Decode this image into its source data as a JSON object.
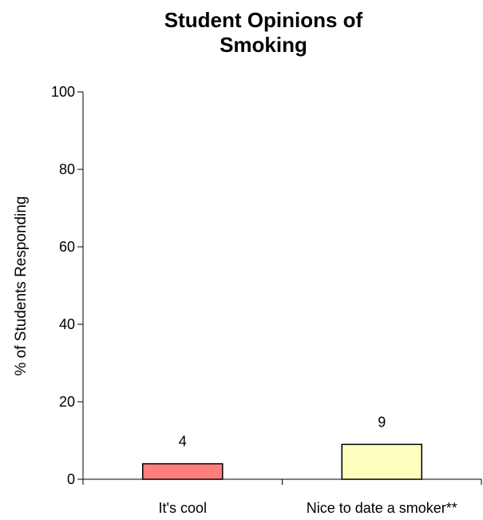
{
  "chart_data": {
    "type": "bar",
    "title": "Student Opinions of Smoking",
    "ylabel": "% of Students Responding",
    "xlabel": "",
    "categories": [
      "It's cool",
      "Nice to date a smoker**"
    ],
    "values": [
      4,
      9
    ],
    "data_labels": [
      "4",
      "9"
    ],
    "bar_colors": [
      "#ff7f7f",
      "#ffffc0"
    ],
    "bar_stroke": "#000000",
    "ylim": [
      0,
      100
    ],
    "yticks": [
      0,
      20,
      40,
      60,
      80,
      100
    ],
    "grid": false,
    "legend": "none"
  }
}
